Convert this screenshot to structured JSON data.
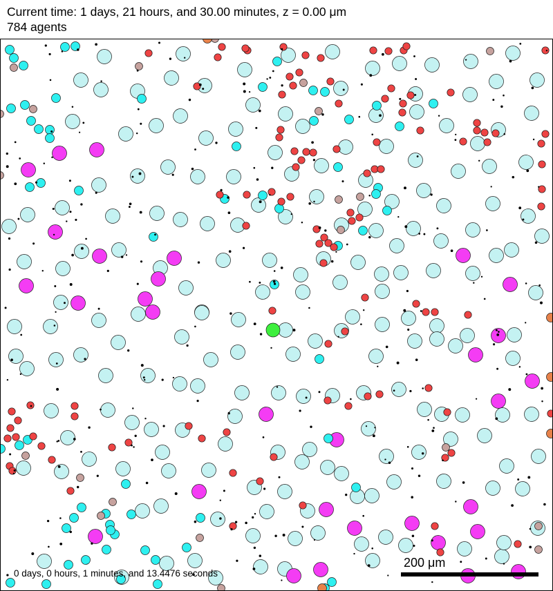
{
  "header": {
    "time_line": "Current time: 1 days, 21 hours, and 30.00 minutes, z = 0.00 μm",
    "agents_line": "784 agents"
  },
  "footer": {
    "elapsed": "0 days, 0 hours, 1 minutes, and 13.4476 seconds",
    "scale_label": "200 μm"
  },
  "colors": {
    "light_cell": "#c4f2f2",
    "cyan_cell": "#2ef0f0",
    "red_cell": "#ee4444",
    "magenta_cell": "#f43cf4",
    "rosy_cell": "#c6a29e",
    "orange_cell": "#e7824a",
    "green_cell": "#3ef03e",
    "dot": "#000000",
    "outline": "#1a1a1a"
  }
}
